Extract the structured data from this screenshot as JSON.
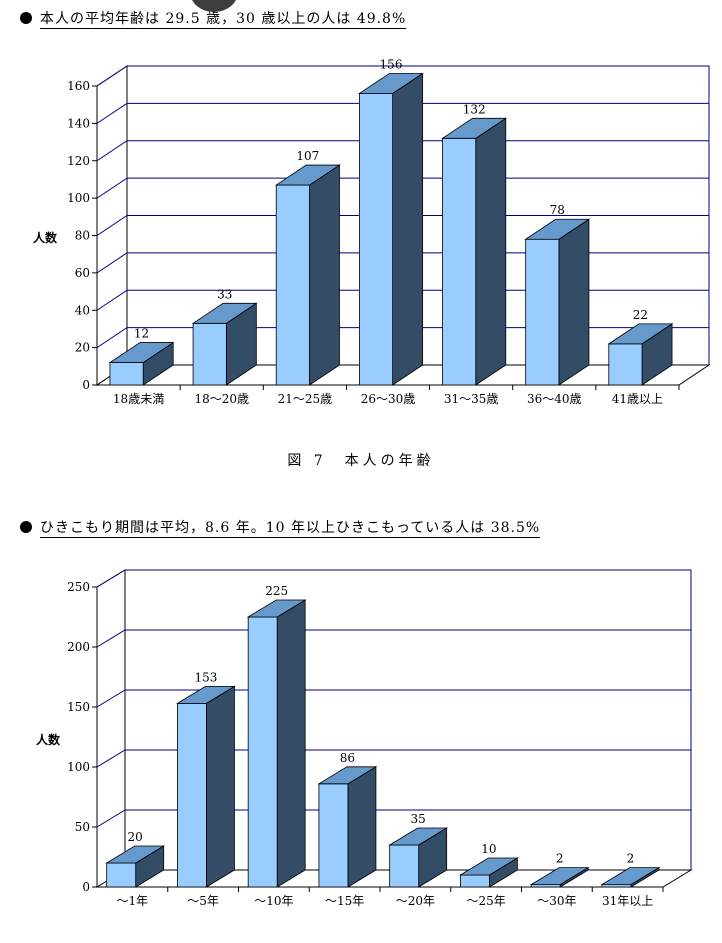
{
  "headings": {
    "age": "本人の平均年齢は 29.5 歳，30 歳以上の人は 49.8%",
    "period": "ひきこもり期間は平均，8.6 年。10 年以上ひきこもっている人は 38.5%"
  },
  "figure_caption": "図 7　本人の年齢",
  "colors": {
    "bar_front": "#99ccff",
    "bar_top": "#6699cc",
    "bar_side": "#334d66",
    "gridline": "#000080"
  },
  "chart_data": [
    {
      "type": "bar",
      "ylabel": "人数",
      "ylim": [
        0,
        160
      ],
      "yticks": [
        0,
        20,
        40,
        60,
        80,
        100,
        120,
        140,
        160
      ],
      "categories": [
        "18歳未満",
        "18～20歳",
        "21～25歳",
        "26～30歳",
        "31～35歳",
        "36～40歳",
        "41歳以上"
      ],
      "values": [
        12,
        33,
        107,
        156,
        132,
        78,
        22
      ],
      "grid": true,
      "style": "3d"
    },
    {
      "type": "bar",
      "ylabel": "人数",
      "ylim": [
        0,
        250
      ],
      "yticks": [
        0,
        50,
        100,
        150,
        200,
        250
      ],
      "categories": [
        "～1年",
        "～5年",
        "～10年",
        "～15年",
        "～20年",
        "～25年",
        "～30年",
        "31年以上"
      ],
      "values": [
        20,
        153,
        225,
        86,
        35,
        10,
        2,
        2
      ],
      "grid": true,
      "style": "3d"
    }
  ]
}
